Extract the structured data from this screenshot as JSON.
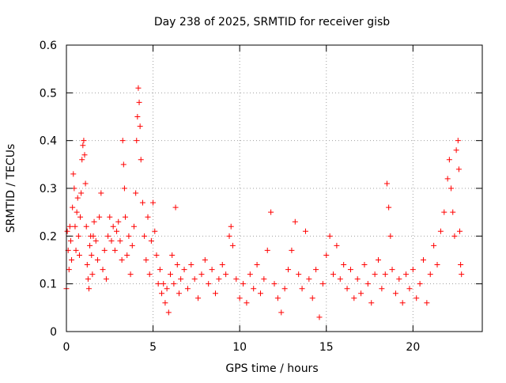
{
  "chart_data": {
    "type": "scatter",
    "title": "Day 238 of 2025, SRMTID for receiver gisb",
    "xlabel": "GPS time / hours",
    "ylabel": "SRMTID / TECUs",
    "xlim": [
      0,
      24
    ],
    "ylim": [
      0,
      0.6
    ],
    "xticks": [
      0,
      5,
      10,
      15,
      20
    ],
    "xtick_labels": [
      "0",
      "5",
      "10",
      "15",
      "20"
    ],
    "yticks": [
      0,
      0.1,
      0.2,
      0.3,
      0.4,
      0.5,
      0.6
    ],
    "ytick_labels": [
      "0",
      "0.1",
      "0.2",
      "0.3",
      "0.4",
      "0.5",
      "0.6"
    ],
    "grid": true,
    "marker": "plus",
    "color": "#ff0000",
    "series": [
      {
        "name": "SRMTID",
        "points": [
          [
            0.0,
            0.09
          ],
          [
            0.05,
            0.21
          ],
          [
            0.1,
            0.17
          ],
          [
            0.15,
            0.13
          ],
          [
            0.2,
            0.22
          ],
          [
            0.25,
            0.19
          ],
          [
            0.3,
            0.15
          ],
          [
            0.35,
            0.26
          ],
          [
            0.4,
            0.33
          ],
          [
            0.45,
            0.3
          ],
          [
            0.5,
            0.22
          ],
          [
            0.55,
            0.17
          ],
          [
            0.6,
            0.25
          ],
          [
            0.65,
            0.28
          ],
          [
            0.7,
            0.2
          ],
          [
            0.75,
            0.16
          ],
          [
            0.8,
            0.24
          ],
          [
            0.85,
            0.29
          ],
          [
            0.9,
            0.36
          ],
          [
            0.95,
            0.39
          ],
          [
            1.0,
            0.4
          ],
          [
            1.05,
            0.37
          ],
          [
            1.1,
            0.31
          ],
          [
            1.15,
            0.22
          ],
          [
            1.2,
            0.14
          ],
          [
            1.25,
            0.11
          ],
          [
            1.3,
            0.09
          ],
          [
            1.35,
            0.18
          ],
          [
            1.4,
            0.2
          ],
          [
            1.45,
            0.16
          ],
          [
            1.5,
            0.12
          ],
          [
            1.55,
            0.2
          ],
          [
            1.6,
            0.23
          ],
          [
            1.7,
            0.19
          ],
          [
            1.8,
            0.15
          ],
          [
            1.9,
            0.24
          ],
          [
            2.0,
            0.29
          ],
          [
            2.1,
            0.13
          ],
          [
            2.2,
            0.17
          ],
          [
            2.3,
            0.11
          ],
          [
            2.4,
            0.2
          ],
          [
            2.5,
            0.24
          ],
          [
            2.6,
            0.19
          ],
          [
            2.7,
            0.22
          ],
          [
            2.8,
            0.17
          ],
          [
            2.9,
            0.21
          ],
          [
            3.0,
            0.23
          ],
          [
            3.1,
            0.19
          ],
          [
            3.2,
            0.15
          ],
          [
            3.25,
            0.4
          ],
          [
            3.3,
            0.35
          ],
          [
            3.35,
            0.3
          ],
          [
            3.4,
            0.24
          ],
          [
            3.5,
            0.16
          ],
          [
            3.6,
            0.2
          ],
          [
            3.7,
            0.12
          ],
          [
            3.8,
            0.18
          ],
          [
            3.9,
            0.22
          ],
          [
            4.0,
            0.29
          ],
          [
            4.05,
            0.4
          ],
          [
            4.1,
            0.45
          ],
          [
            4.15,
            0.51
          ],
          [
            4.2,
            0.48
          ],
          [
            4.25,
            0.43
          ],
          [
            4.3,
            0.36
          ],
          [
            4.4,
            0.27
          ],
          [
            4.5,
            0.2
          ],
          [
            4.6,
            0.15
          ],
          [
            4.7,
            0.24
          ],
          [
            4.8,
            0.12
          ],
          [
            4.9,
            0.19
          ],
          [
            5.0,
            0.27
          ],
          [
            5.1,
            0.21
          ],
          [
            5.2,
            0.16
          ],
          [
            5.3,
            0.1
          ],
          [
            5.4,
            0.13
          ],
          [
            5.5,
            0.08
          ],
          [
            5.6,
            0.1
          ],
          [
            5.7,
            0.06
          ],
          [
            5.8,
            0.09
          ],
          [
            5.9,
            0.04
          ],
          [
            6.0,
            0.12
          ],
          [
            6.1,
            0.16
          ],
          [
            6.2,
            0.1
          ],
          [
            6.3,
            0.26
          ],
          [
            6.4,
            0.14
          ],
          [
            6.5,
            0.08
          ],
          [
            6.6,
            0.11
          ],
          [
            6.8,
            0.13
          ],
          [
            7.0,
            0.09
          ],
          [
            7.2,
            0.14
          ],
          [
            7.4,
            0.11
          ],
          [
            7.6,
            0.07
          ],
          [
            7.8,
            0.12
          ],
          [
            8.0,
            0.15
          ],
          [
            8.2,
            0.1
          ],
          [
            8.4,
            0.13
          ],
          [
            8.6,
            0.08
          ],
          [
            8.8,
            0.11
          ],
          [
            9.0,
            0.14
          ],
          [
            9.2,
            0.12
          ],
          [
            9.4,
            0.2
          ],
          [
            9.5,
            0.22
          ],
          [
            9.6,
            0.18
          ],
          [
            9.8,
            0.11
          ],
          [
            10.0,
            0.07
          ],
          [
            10.2,
            0.1
          ],
          [
            10.4,
            0.06
          ],
          [
            10.6,
            0.12
          ],
          [
            10.8,
            0.09
          ],
          [
            11.0,
            0.14
          ],
          [
            11.2,
            0.08
          ],
          [
            11.4,
            0.11
          ],
          [
            11.6,
            0.17
          ],
          [
            11.8,
            0.25
          ],
          [
            12.0,
            0.1
          ],
          [
            12.2,
            0.07
          ],
          [
            12.4,
            0.04
          ],
          [
            12.6,
            0.09
          ],
          [
            12.8,
            0.13
          ],
          [
            13.0,
            0.17
          ],
          [
            13.2,
            0.23
          ],
          [
            13.4,
            0.12
          ],
          [
            13.6,
            0.09
          ],
          [
            13.8,
            0.21
          ],
          [
            14.0,
            0.11
          ],
          [
            14.2,
            0.07
          ],
          [
            14.4,
            0.13
          ],
          [
            14.6,
            0.03
          ],
          [
            14.8,
            0.1
          ],
          [
            15.0,
            0.16
          ],
          [
            15.2,
            0.2
          ],
          [
            15.4,
            0.12
          ],
          [
            15.6,
            0.18
          ],
          [
            15.8,
            0.11
          ],
          [
            16.0,
            0.14
          ],
          [
            16.2,
            0.09
          ],
          [
            16.4,
            0.13
          ],
          [
            16.6,
            0.07
          ],
          [
            16.8,
            0.11
          ],
          [
            17.0,
            0.08
          ],
          [
            17.2,
            0.14
          ],
          [
            17.4,
            0.1
          ],
          [
            17.6,
            0.06
          ],
          [
            17.8,
            0.12
          ],
          [
            18.0,
            0.15
          ],
          [
            18.2,
            0.09
          ],
          [
            18.4,
            0.12
          ],
          [
            18.5,
            0.31
          ],
          [
            18.6,
            0.26
          ],
          [
            18.7,
            0.2
          ],
          [
            18.8,
            0.13
          ],
          [
            19.0,
            0.08
          ],
          [
            19.2,
            0.11
          ],
          [
            19.4,
            0.06
          ],
          [
            19.6,
            0.12
          ],
          [
            19.8,
            0.09
          ],
          [
            20.0,
            0.13
          ],
          [
            20.2,
            0.07
          ],
          [
            20.4,
            0.1
          ],
          [
            20.6,
            0.15
          ],
          [
            20.8,
            0.06
          ],
          [
            21.0,
            0.12
          ],
          [
            21.2,
            0.18
          ],
          [
            21.4,
            0.14
          ],
          [
            21.6,
            0.21
          ],
          [
            21.8,
            0.25
          ],
          [
            22.0,
            0.32
          ],
          [
            22.1,
            0.36
          ],
          [
            22.2,
            0.3
          ],
          [
            22.3,
            0.25
          ],
          [
            22.4,
            0.2
          ],
          [
            22.5,
            0.38
          ],
          [
            22.6,
            0.4
          ],
          [
            22.65,
            0.34
          ],
          [
            22.7,
            0.21
          ],
          [
            22.75,
            0.14
          ],
          [
            22.8,
            0.12
          ]
        ]
      }
    ]
  }
}
